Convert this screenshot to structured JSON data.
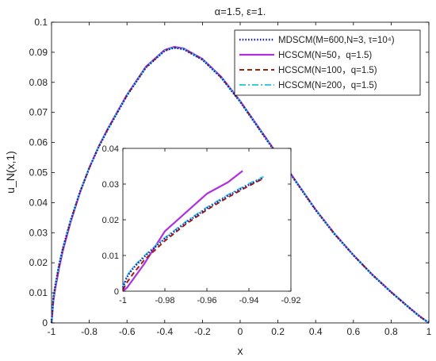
{
  "chart_data": {
    "type": "line",
    "title": "α=1.5, ε=1.",
    "xlabel": "x",
    "ylabel": "u_N(x,1)",
    "xlim": [
      -1,
      1
    ],
    "ylim": [
      0,
      0.1
    ],
    "xticks": [
      "-1",
      "-0.8",
      "-0.6",
      "-0.4",
      "-0.2",
      "0",
      "0.2",
      "0.4",
      "0.6",
      "0.8",
      "1"
    ],
    "yticks": [
      "0",
      "0.01",
      "0.02",
      "0.03",
      "0.04",
      "0.05",
      "0.06",
      "0.07",
      "0.08",
      "0.09",
      "0.1"
    ],
    "grid": false,
    "legend_position": "top-right",
    "legend": [
      {
        "name": "MDSCM(M=600,N=3, τ=10⁴)",
        "color": "#1a1aa8",
        "style": "dotted"
      },
      {
        "name": "HCSCM(N=50，q=1.5)",
        "color": "#b030e0",
        "style": "solid"
      },
      {
        "name": "HCSCM(N=100，q=1.5)",
        "color": "#a02010",
        "style": "dashed"
      },
      {
        "name": "HCSCM(N=200，q=1.5)",
        "color": "#40c8e0",
        "style": "dashdot"
      }
    ],
    "series": [
      {
        "name": "MDSCM(M=600,N=3, τ=10⁴)",
        "x": [
          -1,
          -0.99,
          -0.98,
          -0.96,
          -0.94,
          -0.9,
          -0.85,
          -0.8,
          -0.75,
          -0.7,
          -0.6,
          -0.5,
          -0.4,
          -0.35,
          -0.3,
          -0.2,
          -0.1,
          0,
          0.1,
          0.2,
          0.3,
          0.4,
          0.5,
          0.6,
          0.7,
          0.8,
          0.9,
          0.95,
          1
        ],
        "y": [
          0,
          0.0085,
          0.0125,
          0.0193,
          0.0248,
          0.0338,
          0.0434,
          0.0515,
          0.0585,
          0.0645,
          0.0756,
          0.0849,
          0.0905,
          0.0915,
          0.091,
          0.0875,
          0.0815,
          0.0735,
          0.0645,
          0.0555,
          0.0465,
          0.0375,
          0.0295,
          0.0225,
          0.016,
          0.0102,
          0.0048,
          0.0022,
          0
        ]
      },
      {
        "name": "HCSCM(N=50，q=1.5)",
        "x": [
          -1,
          -0.99,
          -0.98,
          -0.96,
          -0.94,
          -0.9,
          -0.85,
          -0.8,
          -0.75,
          -0.7,
          -0.6,
          -0.5,
          -0.4,
          -0.35,
          -0.3,
          -0.2,
          -0.1,
          0,
          0.1,
          0.2,
          0.3,
          0.4,
          0.5,
          0.6,
          0.7,
          0.8,
          0.9,
          0.95,
          1
        ],
        "y": [
          0,
          0.0075,
          0.0115,
          0.0182,
          0.024,
          0.0333,
          0.0432,
          0.0516,
          0.0587,
          0.0648,
          0.0759,
          0.0852,
          0.0908,
          0.0918,
          0.0913,
          0.0878,
          0.0818,
          0.0738,
          0.0648,
          0.0558,
          0.0467,
          0.0377,
          0.0297,
          0.0226,
          0.0161,
          0.0103,
          0.0049,
          0.0023,
          0
        ]
      },
      {
        "name": "HCSCM(N=100，q=1.5)",
        "x": [
          -1,
          -0.99,
          -0.98,
          -0.96,
          -0.94,
          -0.9,
          -0.85,
          -0.8,
          -0.75,
          -0.7,
          -0.6,
          -0.5,
          -0.4,
          -0.35,
          -0.3,
          -0.2,
          -0.1,
          0,
          0.1,
          0.2,
          0.3,
          0.4,
          0.5,
          0.6,
          0.7,
          0.8,
          0.9,
          0.95,
          1
        ],
        "y": [
          0,
          0.0082,
          0.0122,
          0.019,
          0.0246,
          0.0337,
          0.0434,
          0.0515,
          0.0586,
          0.0646,
          0.0757,
          0.085,
          0.0906,
          0.0916,
          0.0911,
          0.0876,
          0.0816,
          0.0736,
          0.0646,
          0.0556,
          0.0466,
          0.0376,
          0.0296,
          0.0225,
          0.016,
          0.0102,
          0.0048,
          0.0022,
          0
        ]
      },
      {
        "name": "HCSCM(N=200，q=1.5)",
        "x": [
          -1,
          -0.99,
          -0.98,
          -0.96,
          -0.94,
          -0.9,
          -0.85,
          -0.8,
          -0.75,
          -0.7,
          -0.6,
          -0.5,
          -0.4,
          -0.35,
          -0.3,
          -0.2,
          -0.1,
          0,
          0.1,
          0.2,
          0.3,
          0.4,
          0.5,
          0.6,
          0.7,
          0.8,
          0.9,
          0.95,
          1
        ],
        "y": [
          0,
          0.0086,
          0.0126,
          0.0194,
          0.0249,
          0.0339,
          0.0435,
          0.0516,
          0.0586,
          0.0646,
          0.0757,
          0.085,
          0.0906,
          0.0916,
          0.0911,
          0.0876,
          0.0816,
          0.0736,
          0.0646,
          0.0556,
          0.0466,
          0.0376,
          0.0296,
          0.0225,
          0.016,
          0.0102,
          0.0048,
          0.0022,
          0
        ]
      }
    ],
    "inset": {
      "xlim": [
        -1,
        -0.92
      ],
      "ylim": [
        0,
        0.04
      ],
      "xticks": [
        "-1",
        "-0.98",
        "-0.96",
        "-0.94",
        "-0.92"
      ],
      "yticks": [
        "0",
        "0.01",
        "0.02",
        "0.03",
        "0.04"
      ],
      "series": [
        {
          "name": "MDSCM(M=600,N=3, τ=10⁴)",
          "x": [
            -1,
            -0.998,
            -0.995,
            -0.99,
            -0.985,
            -0.98,
            -0.97,
            -0.96,
            -0.95,
            -0.94,
            -0.933
          ],
          "y": [
            0.001,
            0.004,
            0.0065,
            0.0095,
            0.0122,
            0.0147,
            0.0192,
            0.0232,
            0.0267,
            0.0298,
            0.0318
          ]
        },
        {
          "name": "HCSCM(N=50，q=1.5)",
          "x": [
            -1,
            -0.998,
            -0.99,
            -0.98,
            -0.96,
            -0.95,
            -0.943
          ],
          "y": [
            0,
            0.001,
            0.0075,
            0.0168,
            0.0273,
            0.0305,
            0.0337
          ]
        },
        {
          "name": "HCSCM(N=100，q=1.5)",
          "x": [
            -1,
            -0.998,
            -0.995,
            -0.99,
            -0.98,
            -0.97,
            -0.96,
            -0.95,
            -0.94,
            -0.933
          ],
          "y": [
            0.0004,
            0.0025,
            0.005,
            0.0086,
            0.0141,
            0.0188,
            0.0228,
            0.0263,
            0.0295,
            0.0316
          ]
        },
        {
          "name": "HCSCM(N=200，q=1.5)",
          "x": [
            -1,
            -0.998,
            -0.995,
            -0.99,
            -0.985,
            -0.98,
            -0.97,
            -0.96,
            -0.95,
            -0.94,
            -0.933
          ],
          "y": [
            0.0012,
            0.0044,
            0.0068,
            0.0098,
            0.0125,
            0.015,
            0.0195,
            0.0235,
            0.027,
            0.0301,
            0.0321
          ]
        }
      ]
    }
  }
}
